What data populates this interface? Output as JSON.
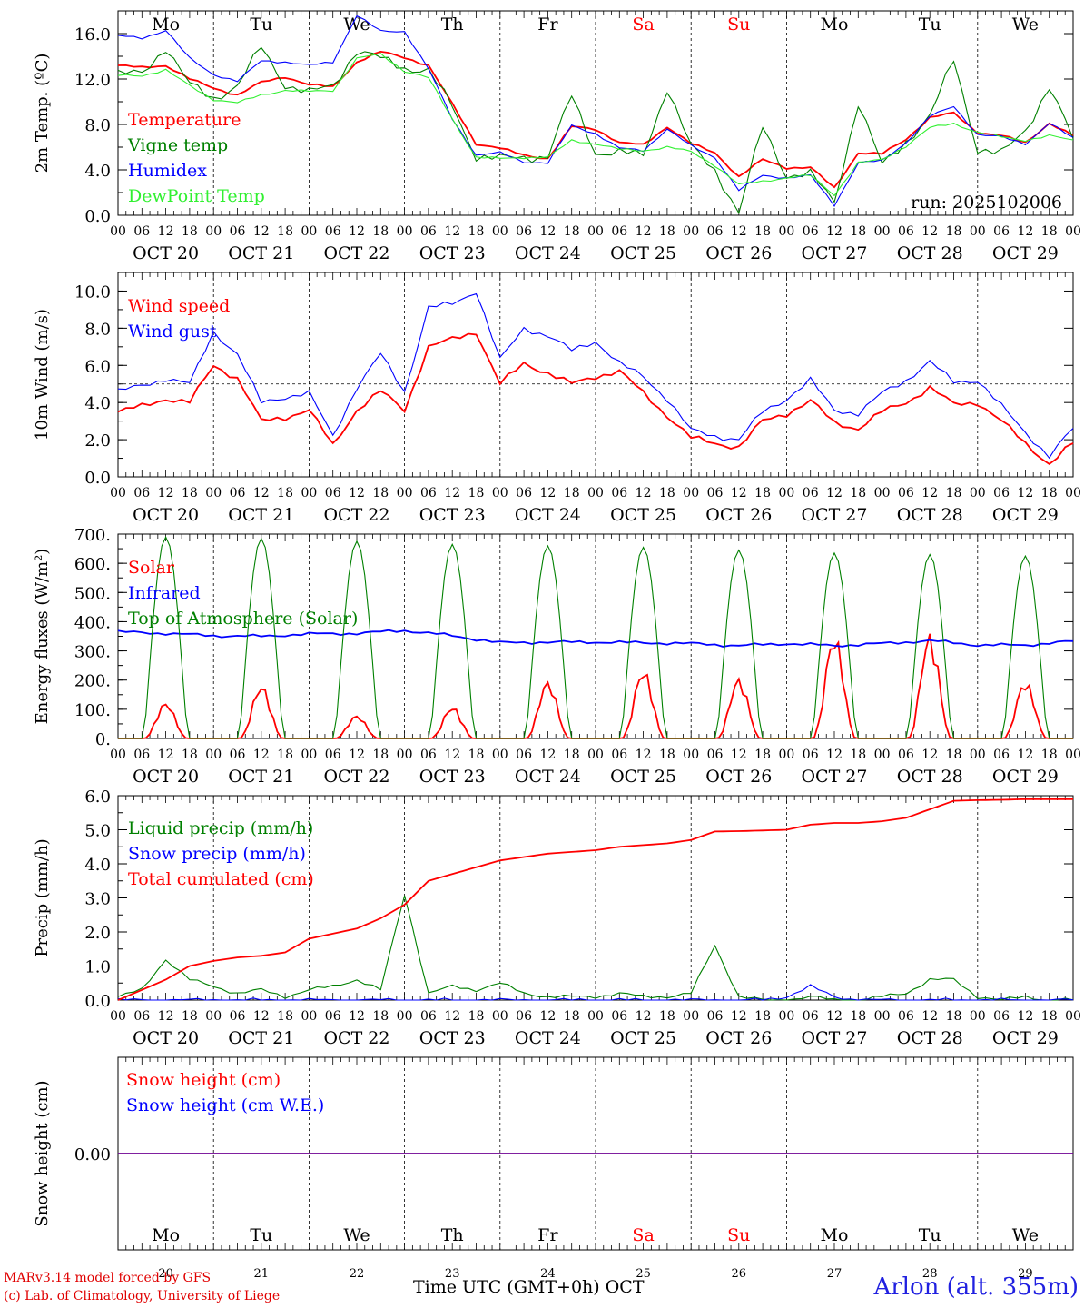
{
  "days": [
    {
      "dow": "Mo",
      "date": "OCT 20",
      "num": "20",
      "weekend": false
    },
    {
      "dow": "Tu",
      "date": "OCT 21",
      "num": "21",
      "weekend": false
    },
    {
      "dow": "We",
      "date": "OCT 22",
      "num": "22",
      "weekend": false
    },
    {
      "dow": "Th",
      "date": "OCT 23",
      "num": "23",
      "weekend": false
    },
    {
      "dow": "Fr",
      "date": "OCT 24",
      "num": "24",
      "weekend": false
    },
    {
      "dow": "Sa",
      "date": "OCT 25",
      "num": "25",
      "weekend": true
    },
    {
      "dow": "Su",
      "date": "OCT 26",
      "num": "26",
      "weekend": true
    },
    {
      "dow": "Mo",
      "date": "OCT 27",
      "num": "27",
      "weekend": false
    },
    {
      "dow": "Tu",
      "date": "OCT 28",
      "num": "28",
      "weekend": false
    },
    {
      "dow": "We",
      "date": "OCT 29",
      "num": "29",
      "weekend": false
    }
  ],
  "hour_labels": [
    "00",
    "06",
    "12",
    "18"
  ],
  "final_hour_label": "00",
  "colors": {
    "red": "#ff0000",
    "darkgreen": "#008000",
    "blue": "#0000ff",
    "lightgreen": "#30f030",
    "weekend": "#ff0000"
  },
  "footer": {
    "model": "MARv3.14 model forced by GFS",
    "lab": "(c) Lab. of Climatology, University of Liege",
    "time_label": "Time UTC (GMT+0h) OCT",
    "station": "Arlon (alt. 355m)"
  },
  "chart_data": [
    {
      "type": "line",
      "id": "temp",
      "ylabel": "2m Temp. (ºC)",
      "ylim": [
        0,
        18
      ],
      "yticks": [
        "0.0",
        "4.0",
        "8.0",
        "12.0",
        "16.0"
      ],
      "ytick_values": [
        0,
        4,
        8,
        12,
        16
      ],
      "annotation": "run: 2025102006",
      "x_hours": [
        0,
        6,
        12,
        18,
        24,
        30,
        36,
        42,
        48,
        54,
        60,
        66,
        72,
        78,
        84,
        90,
        96,
        102,
        108,
        114,
        120,
        126,
        132,
        138,
        144,
        150,
        156,
        162,
        168,
        174,
        180,
        186,
        192,
        198,
        204,
        210,
        216,
        222,
        228,
        234,
        240
      ],
      "series": [
        {
          "name": "Temperature",
          "color": "red",
          "values": [
            13.2,
            13.0,
            13.2,
            12.0,
            11.2,
            10.6,
            11.7,
            12.2,
            11.5,
            11.3,
            13.5,
            14.4,
            13.9,
            13.2,
            9.8,
            6.3,
            5.9,
            5.3,
            5.0,
            7.8,
            7.6,
            6.4,
            6.2,
            7.8,
            6.3,
            5.5,
            3.4,
            4.9,
            4.2,
            4.2,
            2.4,
            5.5,
            5.4,
            6.7,
            8.6,
            9.0,
            7.3,
            7.0,
            6.4,
            8.1,
            7.0
          ]
        },
        {
          "name": "Vigne temp",
          "color": "darkgreen",
          "values": [
            12.4,
            12.5,
            14.8,
            11.5,
            10.3,
            11.4,
            14.8,
            11.5,
            10.8,
            11.4,
            14.5,
            13.8,
            13.0,
            12.7,
            9.6,
            5.2,
            5.0,
            5.1,
            5.2,
            10.5,
            5.5,
            5.5,
            5.3,
            11.2,
            6.0,
            4.0,
            0.2,
            7.8,
            3.5,
            3.6,
            1.2,
            9.9,
            4.4,
            6.5,
            8.7,
            13.7,
            5.8,
            5.4,
            7.5,
            11.3,
            6.7
          ]
        },
        {
          "name": "Humidex",
          "color": "blue",
          "values": [
            15.8,
            15.6,
            16.3,
            13.8,
            12.4,
            11.8,
            13.6,
            13.5,
            13.2,
            13.5,
            17.6,
            16.2,
            16.2,
            12.9,
            8.5,
            5.3,
            5.5,
            4.7,
            4.6,
            7.9,
            7.2,
            5.9,
            5.7,
            7.6,
            6.1,
            5.1,
            2.2,
            3.5,
            3.3,
            3.5,
            0.9,
            4.6,
            4.8,
            6.4,
            8.7,
            9.6,
            7.1,
            6.9,
            6.3,
            8.1,
            6.8
          ]
        },
        {
          "name": "DewPoint Temp",
          "color": "lightgreen",
          "values": [
            12.3,
            12.3,
            12.8,
            11.4,
            10.2,
            9.9,
            10.6,
            11.0,
            10.9,
            11.0,
            13.8,
            14.2,
            12.7,
            12.1,
            8.5,
            5.1,
            5.0,
            5.1,
            5.1,
            6.6,
            6.3,
            5.8,
            5.7,
            6.0,
            5.6,
            4.4,
            2.7,
            3.0,
            3.3,
            3.5,
            1.8,
            4.6,
            4.9,
            6.1,
            7.7,
            8.1,
            7.3,
            6.9,
            6.6,
            7.0,
            6.6
          ]
        }
      ]
    },
    {
      "type": "line",
      "id": "wind",
      "ylabel": "10m Wind (m/s)",
      "ylim": [
        0,
        11
      ],
      "yticks": [
        "0.0",
        "2.0",
        "4.0",
        "6.0",
        "8.0",
        "10.0"
      ],
      "ytick_values": [
        0,
        2,
        4,
        6,
        8,
        10
      ],
      "ref_line": 5,
      "x_hours": [
        0,
        6,
        12,
        18,
        24,
        30,
        36,
        42,
        48,
        54,
        60,
        66,
        72,
        78,
        84,
        90,
        96,
        102,
        108,
        114,
        120,
        126,
        132,
        138,
        144,
        150,
        156,
        162,
        168,
        174,
        180,
        186,
        192,
        198,
        204,
        210,
        216,
        222,
        228,
        234,
        240
      ],
      "series": [
        {
          "name": "Wind speed",
          "color": "red",
          "values": [
            3.5,
            3.8,
            4.2,
            4.0,
            6.0,
            5.3,
            3.0,
            3.2,
            3.6,
            1.7,
            3.6,
            4.6,
            3.6,
            7.0,
            7.4,
            7.8,
            5.0,
            6.1,
            5.6,
            5.0,
            5.4,
            5.7,
            4.5,
            3.3,
            2.1,
            1.8,
            1.6,
            3.0,
            3.4,
            4.1,
            2.9,
            2.6,
            3.5,
            4.0,
            4.8,
            3.9,
            4.0,
            3.0,
            1.8,
            0.7,
            1.8
          ]
        },
        {
          "name": "Wind gust",
          "color": "blue",
          "values": [
            4.6,
            4.9,
            5.3,
            5.0,
            7.8,
            6.6,
            4.0,
            4.3,
            4.5,
            2.2,
            4.8,
            6.6,
            4.6,
            9.1,
            9.3,
            10.0,
            6.3,
            8.0,
            7.6,
            6.8,
            7.3,
            6.1,
            5.4,
            4.2,
            2.5,
            2.2,
            2.0,
            3.5,
            4.2,
            5.2,
            3.6,
            3.4,
            4.5,
            5.2,
            6.2,
            5.1,
            5.2,
            3.8,
            2.4,
            1.1,
            2.6
          ]
        }
      ]
    },
    {
      "type": "line",
      "id": "energy",
      "ylabel": "Energy fluxes (W/m²)",
      "ylim": [
        0,
        700
      ],
      "yticks": [
        "0.",
        "100.",
        "200.",
        "300.",
        "400.",
        "500.",
        "600.",
        "700."
      ],
      "ytick_values": [
        0,
        100,
        200,
        300,
        400,
        500,
        600,
        700
      ],
      "series": [
        {
          "name": "Solar",
          "color": "red",
          "peaks": [
            125,
            185,
            80,
            110,
            200,
            240,
            210,
            360,
            365,
            200
          ]
        },
        {
          "name": "Infrared",
          "color": "blue",
          "x_hours": [
            0,
            12,
            24,
            36,
            48,
            60,
            72,
            84,
            96,
            108,
            120,
            132,
            144,
            156,
            168,
            180,
            192,
            204,
            216,
            228,
            240
          ],
          "values": [
            365,
            360,
            352,
            350,
            358,
            360,
            370,
            352,
            328,
            330,
            330,
            328,
            325,
            318,
            325,
            318,
            325,
            335,
            320,
            320,
            333
          ]
        },
        {
          "name": "Top of Atmosphere (Solar)",
          "color": "darkgreen",
          "peaks": [
            690,
            685,
            675,
            665,
            660,
            655,
            645,
            635,
            630,
            625
          ]
        }
      ]
    },
    {
      "type": "line",
      "id": "precip",
      "ylabel": "Precip (mm/h)",
      "ylim": [
        0,
        6
      ],
      "yticks": [
        "0.0",
        "1.0",
        "2.0",
        "3.0",
        "4.0",
        "5.0",
        "6.0"
      ],
      "ytick_values": [
        0,
        1,
        2,
        3,
        4,
        5,
        6
      ],
      "x_hours": [
        0,
        6,
        12,
        18,
        24,
        30,
        36,
        42,
        48,
        54,
        60,
        66,
        72,
        78,
        84,
        90,
        96,
        102,
        108,
        114,
        120,
        126,
        132,
        138,
        144,
        150,
        156,
        162,
        168,
        174,
        180,
        186,
        192,
        198,
        204,
        210,
        216,
        222,
        228,
        234,
        240
      ],
      "series": [
        {
          "name": "Liquid precip (mm/h)",
          "color": "darkgreen",
          "values": [
            0.1,
            0.3,
            1.2,
            0.6,
            0.4,
            0.2,
            0.3,
            0.1,
            0.3,
            0.4,
            0.6,
            0.3,
            3.1,
            0.2,
            0.4,
            0.3,
            0.5,
            0.2,
            0.1,
            0.1,
            0.1,
            0.2,
            0.1,
            0.1,
            0.2,
            1.6,
            0.1,
            0.0,
            0.0,
            0.1,
            0.0,
            0.0,
            0.1,
            0.2,
            0.6,
            0.6,
            0.1,
            0.0,
            0.1,
            0.0,
            0.0
          ]
        },
        {
          "name": "Snow precip (mm/h)",
          "color": "blue",
          "values": [
            0,
            0,
            0,
            0,
            0,
            0,
            0,
            0,
            0,
            0,
            0,
            0,
            0,
            0,
            0,
            0,
            0,
            0,
            0,
            0,
            0,
            0,
            0,
            0,
            0,
            0,
            0,
            0,
            0.1,
            0.4,
            0.1,
            0,
            0,
            0,
            0,
            0,
            0,
            0,
            0,
            0,
            0
          ]
        },
        {
          "name": "Total cumulated (cm)",
          "color": "red",
          "values": [
            0.0,
            0.3,
            0.6,
            1.0,
            1.15,
            1.25,
            1.3,
            1.4,
            1.8,
            1.95,
            2.1,
            2.4,
            2.8,
            3.5,
            3.7,
            3.9,
            4.1,
            4.2,
            4.3,
            4.35,
            4.4,
            4.5,
            4.55,
            4.6,
            4.7,
            4.95,
            4.96,
            4.98,
            5.0,
            5.15,
            5.2,
            5.2,
            5.25,
            5.35,
            5.6,
            5.85,
            5.87,
            5.88,
            5.9,
            5.9,
            5.9
          ]
        }
      ]
    },
    {
      "type": "line",
      "id": "snow",
      "ylabel": "Snow height (cm)",
      "ylim": [
        -1,
        1
      ],
      "yticks": [
        "0.00"
      ],
      "ytick_values": [
        0
      ],
      "series": [
        {
          "name": "Snow height (cm)",
          "color": "red",
          "values": [
            0,
            0
          ]
        },
        {
          "name": "Snow height (cm W.E.)",
          "color": "blue",
          "values": [
            0,
            0
          ]
        }
      ]
    }
  ]
}
